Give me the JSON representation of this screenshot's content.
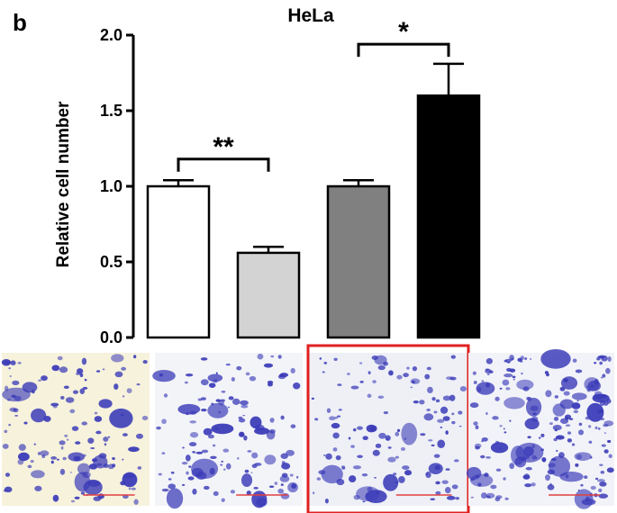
{
  "panel_letter": "b",
  "chart_data": {
    "type": "bar",
    "title": "HeLa",
    "xlabel": "",
    "ylabel": "Relative cell number",
    "ylim": [
      0,
      2.0
    ],
    "yticks": [
      "0.0",
      "0.5",
      "1.0",
      "1.5",
      "2.0"
    ],
    "grid": false,
    "categories": [
      "",
      "",
      "",
      ""
    ],
    "values": [
      1.0,
      0.56,
      1.0,
      1.6
    ],
    "errors": [
      0.04,
      0.04,
      0.04,
      0.21
    ],
    "colors": [
      "#ffffff",
      "#d3d3d3",
      "#808080",
      "#000000"
    ],
    "significance": [
      {
        "from": 0,
        "to": 1,
        "label": "**",
        "level": 1.18
      },
      {
        "from": 2,
        "to": 3,
        "label": "*",
        "level": 1.94
      }
    ]
  },
  "micrographs": [
    {
      "tone": "#f6f2dc",
      "highlighted": false
    },
    {
      "tone": "#f3f4f8",
      "highlighted": false
    },
    {
      "tone": "#eef0f6",
      "highlighted": true
    },
    {
      "tone": "#f2f3f8",
      "highlighted": false
    }
  ],
  "colors": {
    "stain": "#3a3ab8",
    "highlight": "#e02020",
    "scale_bar": "#e04040"
  }
}
